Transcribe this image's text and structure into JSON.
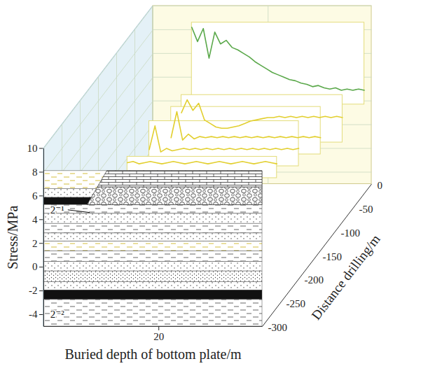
{
  "chart_data": {
    "type": "line",
    "x_label": "Buried depth of bottom plate/m",
    "y_label": "Stress/MPa",
    "z_label": "Distance drilling/m",
    "xlim": [
      0,
      38
    ],
    "xticks": [
      20
    ],
    "ylim": [
      -5,
      10
    ],
    "yticks": [
      -4,
      -2,
      0,
      2,
      4,
      6,
      8,
      10
    ],
    "zlim": [
      -300,
      0
    ],
    "zticks": [
      0,
      -50,
      -100,
      -150,
      -200,
      -250,
      -300
    ],
    "grid": true,
    "annotations": [
      "2⁻¹",
      "2⁻²"
    ],
    "series": [
      {
        "z": -20,
        "color": "#5aa84a",
        "x": [
          8,
          9,
          10,
          11,
          12,
          13,
          14,
          15,
          16,
          17,
          18,
          19,
          20,
          21,
          22,
          23,
          24,
          25,
          26,
          27,
          28,
          29,
          30,
          31,
          32,
          33,
          34,
          35,
          36,
          37,
          38
        ],
        "values": [
          9.0,
          7.8,
          8.9,
          6.4,
          8.6,
          7.6,
          7.9,
          7.3,
          7.1,
          6.8,
          6.5,
          6.1,
          5.8,
          5.5,
          5.2,
          5.0,
          4.8,
          4.6,
          4.5,
          4.3,
          4.2,
          4.0,
          4.1,
          3.9,
          3.8,
          3.9,
          3.7,
          3.8,
          3.7,
          3.8,
          3.7
        ]
      },
      {
        "z": -80,
        "color": "#e2cf2e",
        "x": [
          10,
          11,
          12,
          13,
          14,
          15,
          16,
          17,
          18,
          19,
          20,
          21,
          22,
          23,
          24,
          25,
          26,
          27,
          28,
          29,
          30,
          31,
          32,
          33,
          34,
          35,
          36,
          37,
          38
        ],
        "values": [
          4.2,
          5.3,
          4.4,
          5.0,
          3.6,
          3.3,
          3.0,
          2.9,
          2.9,
          3.0,
          3.1,
          3.3,
          3.5,
          3.6,
          3.7,
          3.8,
          3.8,
          3.9,
          3.8,
          3.9,
          3.8,
          3.9,
          3.8,
          3.9,
          3.8,
          3.9,
          3.8,
          3.9,
          3.8
        ]
      },
      {
        "z": -140,
        "color": "#e2cf2e",
        "x": [
          12,
          13,
          14,
          15,
          16,
          17,
          18,
          19,
          20,
          21,
          22,
          23,
          24,
          25,
          26,
          27,
          28,
          29,
          30,
          31,
          32,
          33,
          34,
          35,
          36,
          37,
          38
        ],
        "values": [
          4.5,
          6.7,
          4.3,
          4.8,
          4.4,
          4.6,
          4.5,
          4.6,
          4.5,
          4.6,
          4.5,
          4.6,
          4.5,
          4.6,
          4.5,
          4.6,
          4.5,
          4.6,
          4.5,
          4.6,
          4.5,
          4.6,
          4.5,
          4.6,
          4.5,
          4.6,
          4.5
        ]
      },
      {
        "z": -200,
        "color": "#e2cf2e",
        "x": [
          12,
          13,
          14,
          15,
          16,
          17,
          18,
          19,
          20,
          21,
          22,
          23,
          24,
          25,
          26,
          27,
          28,
          29,
          30,
          31,
          32,
          33,
          34,
          35,
          36,
          37,
          38
        ],
        "values": [
          5.9,
          7.9,
          5.7,
          6.0,
          5.8,
          5.9,
          6.0,
          5.9,
          6.0,
          5.9,
          6.0,
          5.9,
          6.0,
          5.9,
          6.0,
          5.9,
          6.0,
          5.9,
          6.0,
          5.9,
          6.0,
          5.9,
          6.0,
          5.9,
          6.0,
          5.9,
          6.0
        ]
      },
      {
        "z": -260,
        "color": "#e2cf2e",
        "x": [
          12,
          13,
          14,
          15,
          16,
          17,
          18,
          19,
          20,
          21,
          22,
          23,
          24,
          25,
          26,
          27,
          28,
          29,
          30,
          31,
          32,
          33,
          34,
          35,
          36,
          37,
          38
        ],
        "values": [
          7.2,
          7.3,
          7.1,
          7.2,
          7.3,
          7.2,
          7.1,
          7.2,
          7.3,
          7.2,
          7.1,
          7.2,
          7.3,
          7.2,
          7.1,
          7.2,
          7.3,
          7.2,
          7.1,
          7.2,
          7.3,
          7.2,
          7.1,
          7.2,
          7.3,
          7.2,
          7.1
        ]
      }
    ]
  }
}
